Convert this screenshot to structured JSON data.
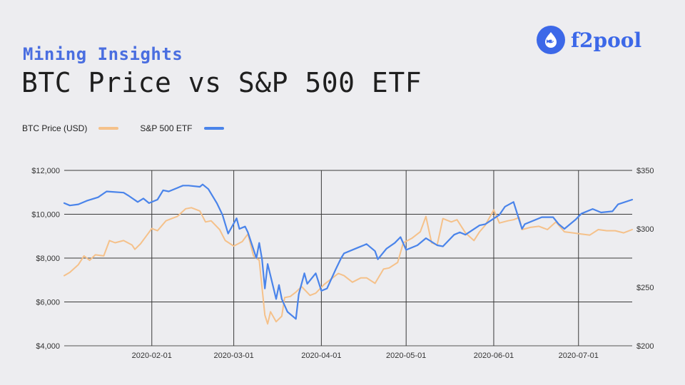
{
  "header": {
    "subtitle": "Mining Insights",
    "title": "BTC Price vs S&P 500 ETF",
    "logo_text": "f2pool"
  },
  "chart_data": {
    "type": "line",
    "legend_position": "top-left",
    "grid": true,
    "x_range": [
      "2020-01-01",
      "2020-07-20"
    ],
    "x_ticks": [
      "2020-02-01",
      "2020-03-01",
      "2020-04-01",
      "2020-05-01",
      "2020-06-01",
      "2020-07-01"
    ],
    "y_left": {
      "range": [
        4000,
        12000
      ],
      "ticks": [
        4000,
        6000,
        8000,
        10000,
        12000
      ],
      "tick_labels": [
        "$4,000",
        "$6,000",
        "$8,000",
        "$10,000",
        "$12,000"
      ]
    },
    "y_right": {
      "range": [
        200,
        350
      ],
      "ticks": [
        200,
        250,
        300,
        350
      ],
      "tick_labels": [
        "$200",
        "$250",
        "$300",
        "$350"
      ]
    },
    "series": [
      {
        "name": "BTC Price (USD)",
        "axis": "left",
        "color": "#f5c18a",
        "points": [
          [
            "2020-01-01",
            7200
          ],
          [
            "2020-01-03",
            7350
          ],
          [
            "2020-01-06",
            7700
          ],
          [
            "2020-01-08",
            8100
          ],
          [
            "2020-01-10",
            7900
          ],
          [
            "2020-01-12",
            8150
          ],
          [
            "2020-01-15",
            8100
          ],
          [
            "2020-01-17",
            8800
          ],
          [
            "2020-01-19",
            8700
          ],
          [
            "2020-01-22",
            8800
          ],
          [
            "2020-01-25",
            8600
          ],
          [
            "2020-01-26",
            8400
          ],
          [
            "2020-01-28",
            8650
          ],
          [
            "2020-01-30",
            9000
          ],
          [
            "2020-02-01",
            9350
          ],
          [
            "2020-02-03",
            9250
          ],
          [
            "2020-02-06",
            9700
          ],
          [
            "2020-02-08",
            9800
          ],
          [
            "2020-02-10",
            9900
          ],
          [
            "2020-02-13",
            10250
          ],
          [
            "2020-02-15",
            10300
          ],
          [
            "2020-02-18",
            10150
          ],
          [
            "2020-02-20",
            9650
          ],
          [
            "2020-02-22",
            9700
          ],
          [
            "2020-02-25",
            9300
          ],
          [
            "2020-02-27",
            8800
          ],
          [
            "2020-03-01",
            8550
          ],
          [
            "2020-03-04",
            8750
          ],
          [
            "2020-03-06",
            9100
          ],
          [
            "2020-03-08",
            8100
          ],
          [
            "2020-03-10",
            7900
          ],
          [
            "2020-03-12",
            5400
          ],
          [
            "2020-03-13",
            5000
          ],
          [
            "2020-03-14",
            5550
          ],
          [
            "2020-03-16",
            5100
          ],
          [
            "2020-03-18",
            5350
          ],
          [
            "2020-03-19",
            6200
          ],
          [
            "2020-03-21",
            6250
          ],
          [
            "2020-03-23",
            6450
          ],
          [
            "2020-03-25",
            6700
          ],
          [
            "2020-03-28",
            6300
          ],
          [
            "2020-03-30",
            6400
          ],
          [
            "2020-04-02",
            6800
          ],
          [
            "2020-04-05",
            7100
          ],
          [
            "2020-04-07",
            7300
          ],
          [
            "2020-04-09",
            7200
          ],
          [
            "2020-04-12",
            6900
          ],
          [
            "2020-04-15",
            7100
          ],
          [
            "2020-04-17",
            7100
          ],
          [
            "2020-04-20",
            6850
          ],
          [
            "2020-04-23",
            7500
          ],
          [
            "2020-04-25",
            7550
          ],
          [
            "2020-04-28",
            7800
          ],
          [
            "2020-04-30",
            8700
          ],
          [
            "2020-05-03",
            8900
          ],
          [
            "2020-05-06",
            9200
          ],
          [
            "2020-05-08",
            9900
          ],
          [
            "2020-05-10",
            8700
          ],
          [
            "2020-05-12",
            8600
          ],
          [
            "2020-05-14",
            9800
          ],
          [
            "2020-05-17",
            9650
          ],
          [
            "2020-05-19",
            9750
          ],
          [
            "2020-05-22",
            9150
          ],
          [
            "2020-05-25",
            8800
          ],
          [
            "2020-05-27",
            9200
          ],
          [
            "2020-05-29",
            9500
          ],
          [
            "2020-06-01",
            10200
          ],
          [
            "2020-06-03",
            9600
          ],
          [
            "2020-06-06",
            9700
          ],
          [
            "2020-06-08",
            9750
          ],
          [
            "2020-06-10",
            9850
          ],
          [
            "2020-06-11",
            9300
          ],
          [
            "2020-06-14",
            9400
          ],
          [
            "2020-06-17",
            9450
          ],
          [
            "2020-06-20",
            9300
          ],
          [
            "2020-06-23",
            9650
          ],
          [
            "2020-06-26",
            9200
          ],
          [
            "2020-06-29",
            9150
          ],
          [
            "2020-07-02",
            9100
          ],
          [
            "2020-07-05",
            9050
          ],
          [
            "2020-07-08",
            9300
          ],
          [
            "2020-07-11",
            9250
          ],
          [
            "2020-07-14",
            9250
          ],
          [
            "2020-07-17",
            9150
          ],
          [
            "2020-07-20",
            9300
          ]
        ]
      },
      {
        "name": "S&P 500 ETF",
        "axis": "right",
        "color": "#4a84ea",
        "points": [
          [
            "2020-01-01",
            322
          ],
          [
            "2020-01-03",
            320
          ],
          [
            "2020-01-06",
            321
          ],
          [
            "2020-01-09",
            324
          ],
          [
            "2020-01-13",
            327
          ],
          [
            "2020-01-16",
            332
          ],
          [
            "2020-01-22",
            331
          ],
          [
            "2020-01-24",
            328
          ],
          [
            "2020-01-27",
            323
          ],
          [
            "2020-01-29",
            326
          ],
          [
            "2020-01-31",
            322
          ],
          [
            "2020-02-03",
            325
          ],
          [
            "2020-02-05",
            333
          ],
          [
            "2020-02-07",
            332
          ],
          [
            "2020-02-10",
            335
          ],
          [
            "2020-02-12",
            337
          ],
          [
            "2020-02-14",
            337
          ],
          [
            "2020-02-18",
            336
          ],
          [
            "2020-02-19",
            338
          ],
          [
            "2020-02-21",
            334
          ],
          [
            "2020-02-24",
            322
          ],
          [
            "2020-02-26",
            312
          ],
          [
            "2020-02-28",
            296
          ],
          [
            "2020-03-02",
            309
          ],
          [
            "2020-03-03",
            300
          ],
          [
            "2020-03-05",
            302
          ],
          [
            "2020-03-06",
            297
          ],
          [
            "2020-03-09",
            275
          ],
          [
            "2020-03-10",
            288
          ],
          [
            "2020-03-11",
            274
          ],
          [
            "2020-03-12",
            249
          ],
          [
            "2020-03-13",
            270
          ],
          [
            "2020-03-16",
            240
          ],
          [
            "2020-03-17",
            252
          ],
          [
            "2020-03-18",
            240
          ],
          [
            "2020-03-20",
            229
          ],
          [
            "2020-03-23",
            223
          ],
          [
            "2020-03-24",
            244
          ],
          [
            "2020-03-26",
            262
          ],
          [
            "2020-03-27",
            253
          ],
          [
            "2020-03-30",
            262
          ],
          [
            "2020-04-01",
            247
          ],
          [
            "2020-04-03",
            249
          ],
          [
            "2020-04-06",
            265
          ],
          [
            "2020-04-08",
            275
          ],
          [
            "2020-04-09",
            279
          ],
          [
            "2020-04-14",
            284
          ],
          [
            "2020-04-16",
            286
          ],
          [
            "2020-04-17",
            287
          ],
          [
            "2020-04-20",
            281
          ],
          [
            "2020-04-21",
            274
          ],
          [
            "2020-04-24",
            283
          ],
          [
            "2020-04-27",
            288
          ],
          [
            "2020-04-29",
            293
          ],
          [
            "2020-05-01",
            282
          ],
          [
            "2020-05-05",
            286
          ],
          [
            "2020-05-08",
            292
          ],
          [
            "2020-05-12",
            286
          ],
          [
            "2020-05-14",
            285
          ],
          [
            "2020-05-18",
            295
          ],
          [
            "2020-05-20",
            297
          ],
          [
            "2020-05-22",
            295
          ],
          [
            "2020-05-27",
            303
          ],
          [
            "2020-05-29",
            304
          ],
          [
            "2020-06-03",
            312
          ],
          [
            "2020-06-05",
            319
          ],
          [
            "2020-06-08",
            323
          ],
          [
            "2020-06-11",
            300
          ],
          [
            "2020-06-12",
            304
          ],
          [
            "2020-06-15",
            307
          ],
          [
            "2020-06-18",
            310
          ],
          [
            "2020-06-22",
            310
          ],
          [
            "2020-06-24",
            304
          ],
          [
            "2020-06-26",
            300
          ],
          [
            "2020-06-30",
            308
          ],
          [
            "2020-07-02",
            313
          ],
          [
            "2020-07-06",
            317
          ],
          [
            "2020-07-09",
            314
          ],
          [
            "2020-07-13",
            315
          ],
          [
            "2020-07-15",
            321
          ],
          [
            "2020-07-20",
            325
          ]
        ]
      }
    ]
  }
}
